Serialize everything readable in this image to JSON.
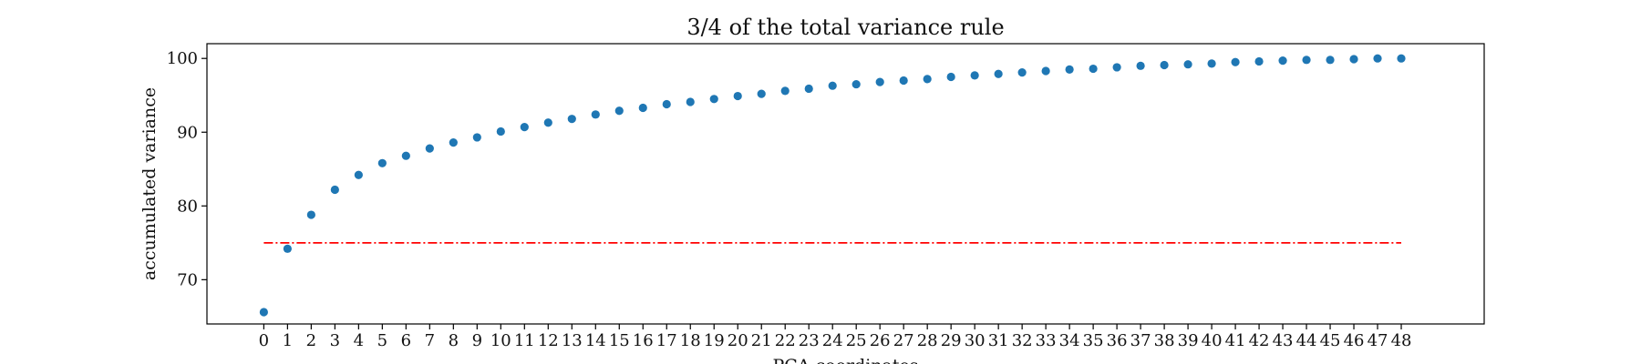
{
  "chart_data": {
    "type": "scatter",
    "title": "3/4 of the total variance rule",
    "xlabel": "PCA coordinates",
    "ylabel": "accumulated variance",
    "x": [
      0,
      1,
      2,
      3,
      4,
      5,
      6,
      7,
      8,
      9,
      10,
      11,
      12,
      13,
      14,
      15,
      16,
      17,
      18,
      19,
      20,
      21,
      22,
      23,
      24,
      25,
      26,
      27,
      28,
      29,
      30,
      31,
      32,
      33,
      34,
      35,
      36,
      37,
      38,
      39,
      40,
      41,
      42,
      43,
      44,
      45,
      46,
      47,
      48
    ],
    "series": [
      {
        "values": [
          65.6,
          74.2,
          78.8,
          82.2,
          84.2,
          85.8,
          86.8,
          87.8,
          88.6,
          89.3,
          90.1,
          90.7,
          91.3,
          91.8,
          92.4,
          92.9,
          93.3,
          93.8,
          94.1,
          94.5,
          94.9,
          95.2,
          95.6,
          95.9,
          96.3,
          96.5,
          96.8,
          97.0,
          97.2,
          97.5,
          97.7,
          97.9,
          98.1,
          98.3,
          98.5,
          98.6,
          98.8,
          99.0,
          99.1,
          99.2,
          99.3,
          99.5,
          99.6,
          99.7,
          99.8,
          99.8,
          99.9,
          100.0,
          100.0
        ],
        "color": "#1f77b4",
        "marker": "circle"
      }
    ],
    "threshold": {
      "value": 75,
      "x_range": [
        0,
        48
      ],
      "color": "#ff0000",
      "style": "dashdot"
    },
    "yticks": [
      70,
      80,
      90,
      100
    ],
    "ylim": [
      64,
      102
    ],
    "xlim": [
      -2.4,
      51.5
    ],
    "grid": false
  }
}
